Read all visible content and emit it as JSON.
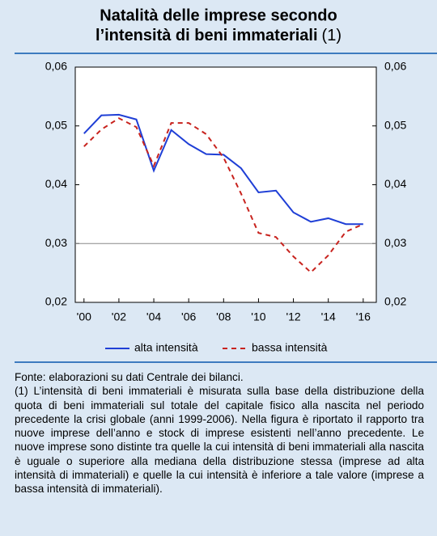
{
  "chart_data": {
    "type": "line",
    "title": [
      "Natalità delle imprese secondo",
      "l’intensità di beni immateriali"
    ],
    "title_note": "(1)",
    "x": [
      2000,
      2001,
      2002,
      2003,
      2004,
      2005,
      2006,
      2007,
      2008,
      2009,
      2010,
      2011,
      2012,
      2013,
      2014,
      2015,
      2016
    ],
    "series": [
      {
        "name": "alta intensità",
        "color": "#1f3fd6",
        "dash": false,
        "values": [
          0.0487,
          0.0518,
          0.0519,
          0.0511,
          0.0424,
          0.0493,
          0.0469,
          0.0452,
          0.0451,
          0.0428,
          0.0387,
          0.039,
          0.0353,
          0.0337,
          0.0343,
          0.0333,
          0.0333
        ]
      },
      {
        "name": "bassa intensità",
        "color": "#c8231e",
        "dash": true,
        "values": [
          0.0465,
          0.0494,
          0.0513,
          0.0498,
          0.0432,
          0.0505,
          0.0505,
          0.0486,
          0.0446,
          0.0385,
          0.0318,
          0.0311,
          0.0278,
          0.0251,
          0.028,
          0.032,
          0.0333
        ]
      }
    ],
    "xlim": [
      1999.5,
      2016.75
    ],
    "xticks": [
      {
        "value": 2000,
        "label": "'00"
      },
      {
        "value": 2002,
        "label": "'02"
      },
      {
        "value": 2004,
        "label": "'04"
      },
      {
        "value": 2006,
        "label": "'06"
      },
      {
        "value": 2008,
        "label": "'08"
      },
      {
        "value": 2010,
        "label": "'10"
      },
      {
        "value": 2012,
        "label": "'12"
      },
      {
        "value": 2014,
        "label": "'14"
      },
      {
        "value": 2016,
        "label": "'16"
      }
    ],
    "ylim": [
      0.02,
      0.06
    ],
    "yticks": [
      {
        "value": 0.02,
        "label": "0,02"
      },
      {
        "value": 0.03,
        "label": "0,03"
      },
      {
        "value": 0.04,
        "label": "0,04"
      },
      {
        "value": 0.05,
        "label": "0,05"
      },
      {
        "value": 0.06,
        "label": "0,06"
      }
    ],
    "y2lim": [
      0.02,
      0.06
    ],
    "y2ticks": [
      {
        "value": 0.02,
        "label": "0,02"
      },
      {
        "value": 0.03,
        "label": "0,03"
      },
      {
        "value": 0.04,
        "label": "0,04"
      },
      {
        "value": 0.05,
        "label": "0,05"
      },
      {
        "value": 0.06,
        "label": "0,06"
      }
    ],
    "reference_line": 0.03,
    "notes": [
      "Fonte: elaborazioni su dati Centrale dei bilanci.",
      "(1) L’intensità di beni immateriali è misurata sulla base della distribuzione della quota di beni immateriali sul totale del capitale fisico alla nascita nel periodo precedente la crisi globale (anni 1999-2006). Nella figura è riportato il rapporto tra nuove imprese dell’anno e stock di imprese esistenti nell’anno precedente. Le nuove imprese sono distinte tra quelle la cui intensità di beni immateriali alla nascita è uguale o superiore alla mediana della distribuzione stessa (imprese ad alta intensità di immateriali) e quelle la cui intensità è inferiore a tale valore (imprese a bassa intensità di immateriali)."
    ]
  }
}
